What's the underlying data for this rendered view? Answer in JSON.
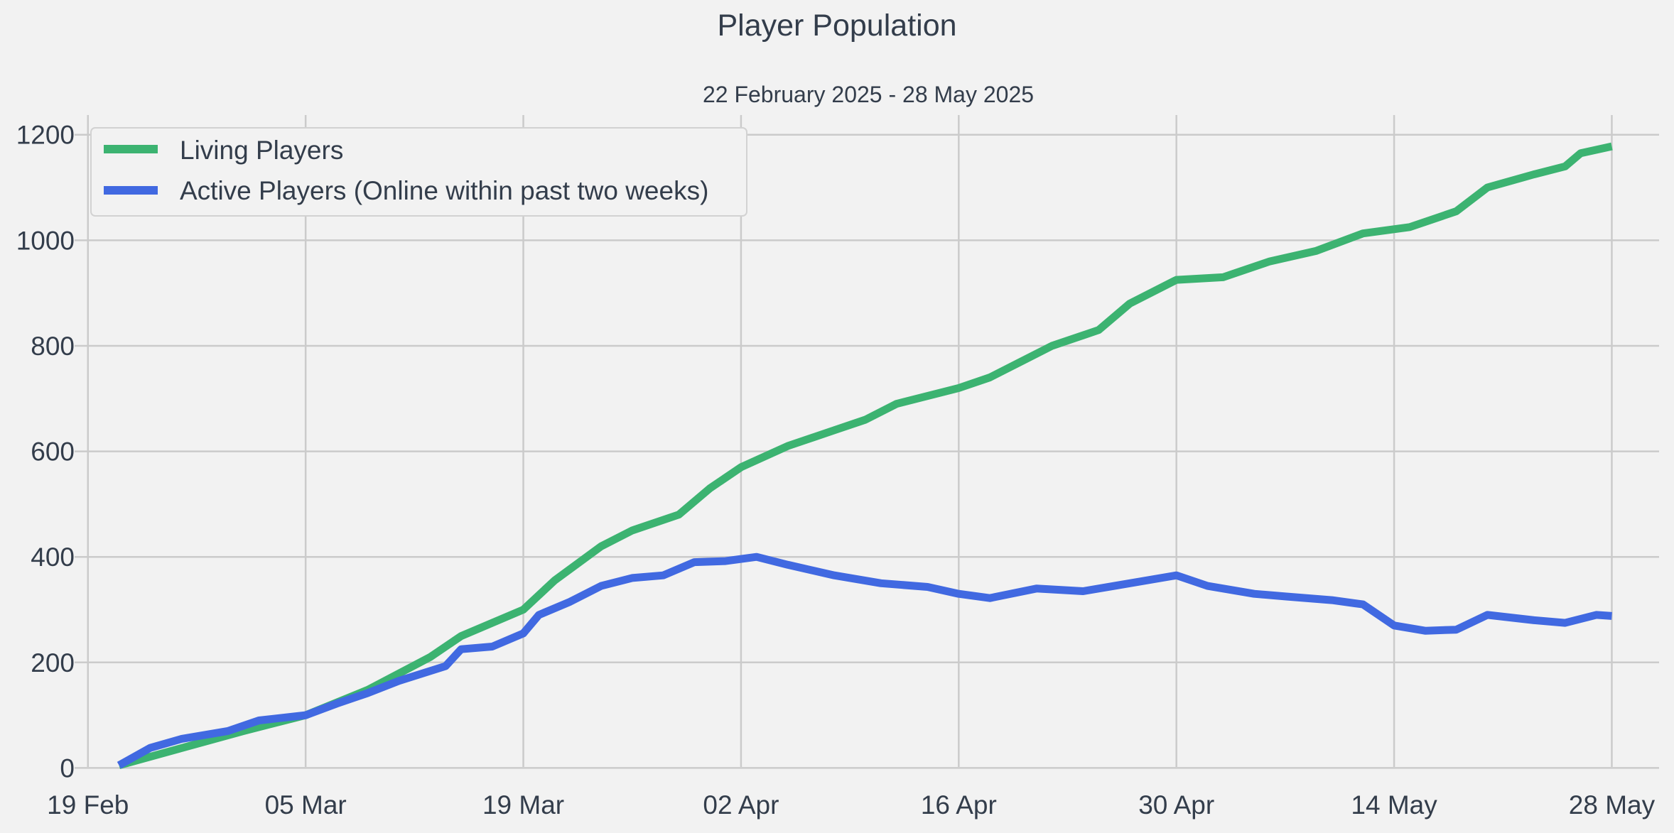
{
  "chart_data": {
    "type": "line",
    "title": "Player Population",
    "subtitle": "22 February 2025 - 28 May 2025",
    "xlabel": "",
    "ylabel": "",
    "x_axis": {
      "type": "date",
      "range": [
        "2025-02-17",
        "2025-06-01"
      ],
      "ticks": [
        {
          "date": "2025-02-19",
          "label": "19 Feb"
        },
        {
          "date": "2025-03-05",
          "label": "05 Mar"
        },
        {
          "date": "2025-03-19",
          "label": "19 Mar"
        },
        {
          "date": "2025-04-02",
          "label": "02 Apr"
        },
        {
          "date": "2025-04-16",
          "label": "16 Apr"
        },
        {
          "date": "2025-04-30",
          "label": "30 Apr"
        },
        {
          "date": "2025-05-14",
          "label": "14 May"
        },
        {
          "date": "2025-05-28",
          "label": "28 May"
        }
      ]
    },
    "y_axis": {
      "range": [
        -25,
        1240
      ],
      "ticks": [
        0,
        200,
        400,
        600,
        800,
        1000,
        1200
      ]
    },
    "grid": true,
    "legend_position": "top-left",
    "series": [
      {
        "name": "Living Players",
        "color": "#3cb371",
        "points": [
          [
            "2025-02-21",
            5
          ],
          [
            "2025-03-01",
            70
          ],
          [
            "2025-03-05",
            100
          ],
          [
            "2025-03-09",
            148
          ],
          [
            "2025-03-13",
            210
          ],
          [
            "2025-03-15",
            250
          ],
          [
            "2025-03-19",
            300
          ],
          [
            "2025-03-21",
            355
          ],
          [
            "2025-03-24",
            420
          ],
          [
            "2025-03-26",
            450
          ],
          [
            "2025-03-29",
            480
          ],
          [
            "2025-03-31",
            530
          ],
          [
            "2025-04-02",
            570
          ],
          [
            "2025-04-05",
            610
          ],
          [
            "2025-04-08",
            640
          ],
          [
            "2025-04-10",
            660
          ],
          [
            "2025-04-12",
            690
          ],
          [
            "2025-04-16",
            720
          ],
          [
            "2025-04-18",
            740
          ],
          [
            "2025-04-22",
            800
          ],
          [
            "2025-04-25",
            830
          ],
          [
            "2025-04-27",
            880
          ],
          [
            "2025-04-30",
            925
          ],
          [
            "2025-05-03",
            930
          ],
          [
            "2025-05-06",
            960
          ],
          [
            "2025-05-09",
            980
          ],
          [
            "2025-05-12",
            1013
          ],
          [
            "2025-05-15",
            1025
          ],
          [
            "2025-05-18",
            1055
          ],
          [
            "2025-05-20",
            1100
          ],
          [
            "2025-05-23",
            1125
          ],
          [
            "2025-05-25",
            1140
          ],
          [
            "2025-05-26",
            1165
          ],
          [
            "2025-05-28",
            1178
          ]
        ]
      },
      {
        "name": "Active Players (Online within past two weeks)",
        "color": "#4169e1",
        "points": [
          [
            "2025-02-21",
            5
          ],
          [
            "2025-02-23",
            38
          ],
          [
            "2025-02-25",
            55
          ],
          [
            "2025-02-28",
            70
          ],
          [
            "2025-03-02",
            90
          ],
          [
            "2025-03-05",
            100
          ],
          [
            "2025-03-07",
            122
          ],
          [
            "2025-03-09",
            142
          ],
          [
            "2025-03-11",
            165
          ],
          [
            "2025-03-14",
            193
          ],
          [
            "2025-03-15",
            225
          ],
          [
            "2025-03-17",
            230
          ],
          [
            "2025-03-19",
            255
          ],
          [
            "2025-03-20",
            290
          ],
          [
            "2025-03-22",
            315
          ],
          [
            "2025-03-24",
            345
          ],
          [
            "2025-03-26",
            360
          ],
          [
            "2025-03-28",
            365
          ],
          [
            "2025-03-30",
            390
          ],
          [
            "2025-04-01",
            392
          ],
          [
            "2025-04-03",
            400
          ],
          [
            "2025-04-05",
            385
          ],
          [
            "2025-04-08",
            365
          ],
          [
            "2025-04-11",
            350
          ],
          [
            "2025-04-14",
            343
          ],
          [
            "2025-04-16",
            330
          ],
          [
            "2025-04-18",
            322
          ],
          [
            "2025-04-21",
            340
          ],
          [
            "2025-04-24",
            335
          ],
          [
            "2025-04-26",
            345
          ],
          [
            "2025-04-30",
            365
          ],
          [
            "2025-05-02",
            345
          ],
          [
            "2025-05-05",
            330
          ],
          [
            "2025-05-07",
            325
          ],
          [
            "2025-05-10",
            318
          ],
          [
            "2025-05-12",
            310
          ],
          [
            "2025-05-14",
            270
          ],
          [
            "2025-05-16",
            260
          ],
          [
            "2025-05-18",
            262
          ],
          [
            "2025-05-20",
            290
          ],
          [
            "2025-05-23",
            280
          ],
          [
            "2025-05-25",
            275
          ],
          [
            "2025-05-27",
            290
          ],
          [
            "2025-05-28",
            288
          ]
        ]
      }
    ]
  }
}
